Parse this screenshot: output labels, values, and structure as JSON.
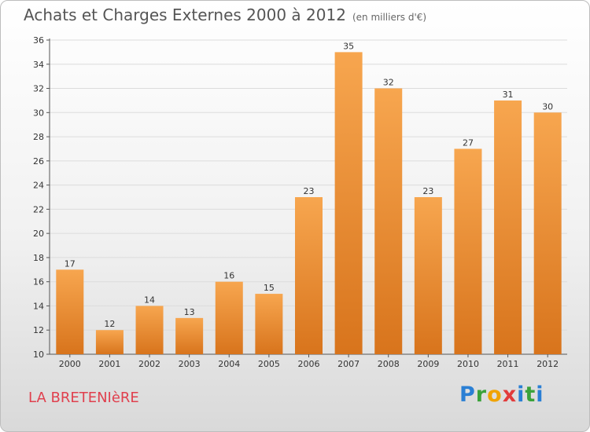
{
  "header": {
    "title": "Achats et Charges Externes 2000 à 2012",
    "unit": "(en milliers d'€)"
  },
  "footer": {
    "location": "LA BRETENIèRE",
    "brand": "Proxiti"
  },
  "colors": {
    "bar_light": "#f7a64f",
    "bar_dark": "#d8741c",
    "location_text": "#e0404e"
  },
  "chart_data": {
    "type": "bar",
    "title": "Achats et Charges Externes 2000 à 2012",
    "subtitle": "(en milliers d'€)",
    "categories": [
      "2000",
      "2001",
      "2002",
      "2003",
      "2004",
      "2005",
      "2006",
      "2007",
      "2008",
      "2009",
      "2010",
      "2011",
      "2012"
    ],
    "values": [
      17,
      12,
      14,
      13,
      16,
      15,
      23,
      35,
      32,
      23,
      27,
      31,
      30
    ],
    "ylim": [
      10,
      36
    ],
    "yticks": [
      10,
      12,
      14,
      16,
      18,
      20,
      22,
      24,
      26,
      28,
      30,
      32,
      34,
      36
    ],
    "grid": true,
    "legend": "none"
  }
}
